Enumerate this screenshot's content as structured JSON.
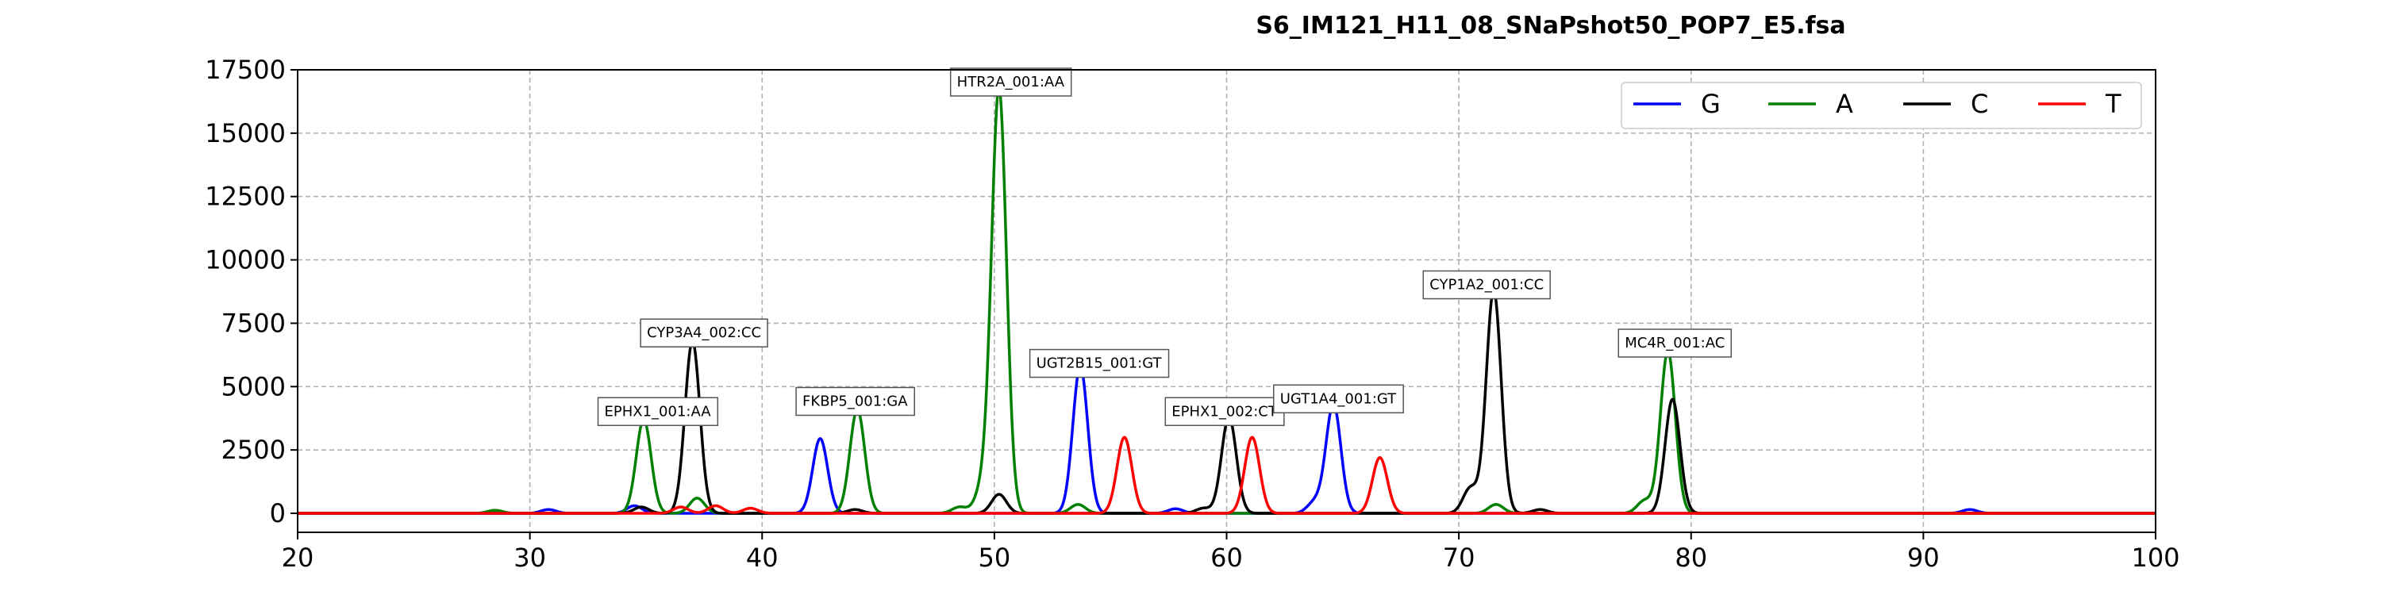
{
  "chart_data": {
    "type": "line",
    "title": "S6_IM121_H11_08_SNaPshot50_POP7_E5.fsa",
    "xlabel": "",
    "ylabel": "",
    "xlim": [
      20,
      100
    ],
    "ylim": [
      -750,
      17500
    ],
    "xticks": [
      20,
      30,
      40,
      50,
      60,
      70,
      80,
      90,
      100
    ],
    "yticks": [
      0,
      2500,
      5000,
      7500,
      10000,
      12500,
      15000,
      17500
    ],
    "grid": true,
    "legend_position": "top-right",
    "series": [
      {
        "name": "G",
        "color": "#0000ff",
        "peaks": [
          {
            "x": 30.8,
            "y": 150
          },
          {
            "x": 34.5,
            "y": 300
          },
          {
            "x": 42.5,
            "y": 2950
          },
          {
            "x": 53.7,
            "y": 5800
          },
          {
            "x": 57.8,
            "y": 180
          },
          {
            "x": 63.8,
            "y": 450
          },
          {
            "x": 64.6,
            "y": 4300
          },
          {
            "x": 92.0,
            "y": 150
          }
        ]
      },
      {
        "name": "A",
        "color": "#008000",
        "peaks": [
          {
            "x": 28.5,
            "y": 120
          },
          {
            "x": 34.9,
            "y": 3700
          },
          {
            "x": 37.2,
            "y": 600
          },
          {
            "x": 44.1,
            "y": 4100
          },
          {
            "x": 48.5,
            "y": 250
          },
          {
            "x": 49.5,
            "y": 950
          },
          {
            "x": 50.2,
            "y": 16700
          },
          {
            "x": 53.6,
            "y": 350
          },
          {
            "x": 71.6,
            "y": 350
          },
          {
            "x": 78.0,
            "y": 500
          },
          {
            "x": 79.0,
            "y": 6400
          }
        ]
      },
      {
        "name": "C",
        "color": "#000000",
        "peaks": [
          {
            "x": 34.8,
            "y": 250
          },
          {
            "x": 37.0,
            "y": 6800
          },
          {
            "x": 44.0,
            "y": 150
          },
          {
            "x": 50.2,
            "y": 750
          },
          {
            "x": 59.0,
            "y": 200
          },
          {
            "x": 60.1,
            "y": 3800
          },
          {
            "x": 70.5,
            "y": 1000
          },
          {
            "x": 71.5,
            "y": 8800
          },
          {
            "x": 73.5,
            "y": 150
          },
          {
            "x": 79.2,
            "y": 4500
          }
        ]
      },
      {
        "name": "T",
        "color": "#ff0000",
        "peaks": [
          {
            "x": 36.5,
            "y": 250
          },
          {
            "x": 38.0,
            "y": 300
          },
          {
            "x": 39.5,
            "y": 200
          },
          {
            "x": 55.6,
            "y": 3000
          },
          {
            "x": 61.1,
            "y": 3000
          },
          {
            "x": 66.6,
            "y": 2200
          }
        ]
      }
    ],
    "annotations": [
      {
        "label": "EPHX1_001:AA",
        "x": 34.9,
        "y": 3700,
        "label_x": 35.5,
        "label_y": 4000
      },
      {
        "label": "CYP3A4_002:CC",
        "x": 37.0,
        "y": 6800,
        "label_x": 37.5,
        "label_y": 7100
      },
      {
        "label": "FKBP5_001:GA",
        "x": 44.1,
        "y": 4100,
        "label_x": 44.0,
        "label_y": 4400
      },
      {
        "label": "HTR2A_001:AA",
        "x": 50.2,
        "y": 16700,
        "label_x": 50.7,
        "label_y": 17000
      },
      {
        "label": "UGT2B15_001:GT",
        "x": 53.7,
        "y": 5800,
        "label_x": 54.5,
        "label_y": 5900
      },
      {
        "label": "EPHX1_002:CT",
        "x": 60.1,
        "y": 3800,
        "label_x": 59.9,
        "label_y": 4000
      },
      {
        "label": "UGT1A4_001:GT",
        "x": 64.6,
        "y": 4300,
        "label_x": 64.8,
        "label_y": 4500
      },
      {
        "label": "CYP1A2_001:CC",
        "x": 71.5,
        "y": 8800,
        "label_x": 71.2,
        "label_y": 9000
      },
      {
        "label": "MC4R_001:AC",
        "x": 79.0,
        "y": 6400,
        "label_x": 79.3,
        "label_y": 6700
      }
    ]
  }
}
